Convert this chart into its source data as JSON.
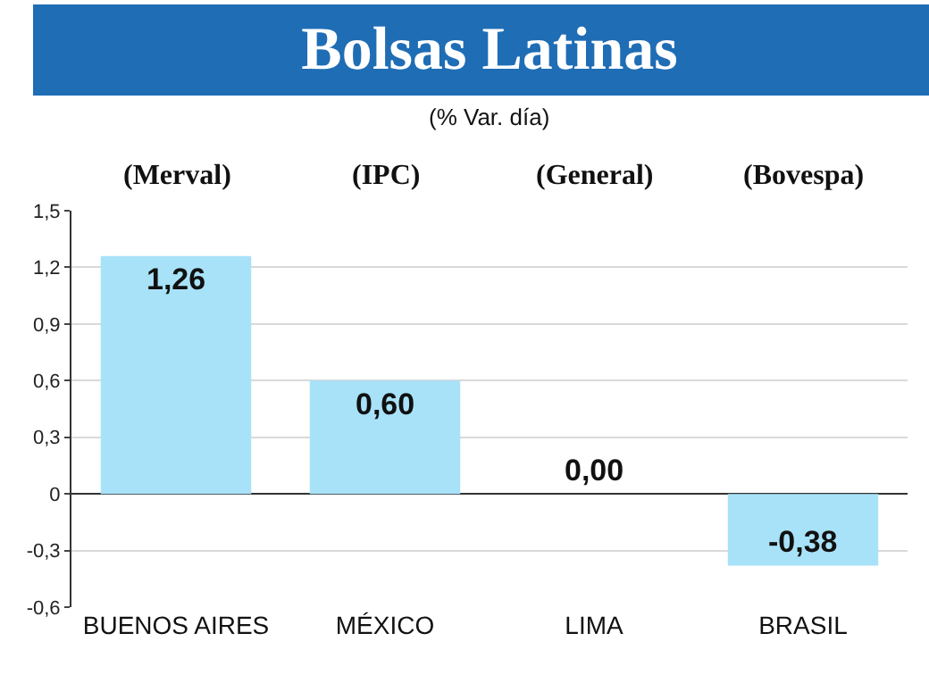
{
  "chart_data": {
    "type": "bar",
    "title": "Bolsas Latinas",
    "subtitle": "(% Var. día)",
    "categories": [
      "BUENOS AIRES",
      "MÉXICO",
      "LIMA",
      "BRASIL"
    ],
    "values": [
      1.26,
      0.6,
      0.0,
      -0.38
    ],
    "value_labels": [
      "1,26",
      "0,60",
      "0,00",
      "-0,38"
    ],
    "color": "#a8e2f8",
    "annotations": [
      "(Merval)",
      "(IPC)",
      "(General)",
      "(Bovespa)"
    ],
    "ylim": [
      -0.6,
      1.5
    ],
    "yticks": [
      {
        "value": -0.6,
        "label": "-0,6"
      },
      {
        "value": -0.3,
        "label": "-0,3"
      },
      0,
      {
        "value": 0.3,
        "label": "0,3"
      },
      {
        "value": 0.6,
        "label": "0,6"
      },
      {
        "value": 0.9,
        "label": "0,9"
      },
      {
        "value": 1.2,
        "label": "1,2"
      },
      {
        "value": 1.5,
        "label": "1,5"
      }
    ],
    "grid": "y",
    "legend": false
  }
}
